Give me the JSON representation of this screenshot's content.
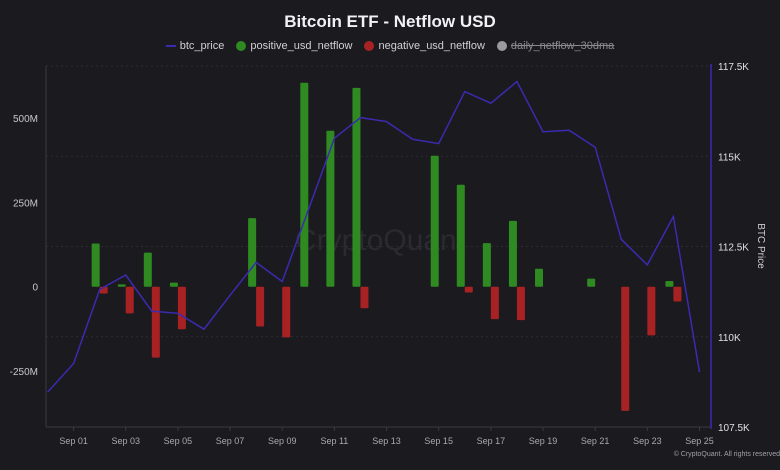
{
  "chart_data": {
    "type": "bar+line",
    "title": "Bitcoin ETF - Netflow USD",
    "legend": [
      {
        "name": "btc_price",
        "color": "#3a2bb0",
        "symbol": "line",
        "enabled": true
      },
      {
        "name": "positive_usd_netflow",
        "color": "#2f8a22",
        "symbol": "dot",
        "enabled": true
      },
      {
        "name": "negative_usd_netflow",
        "color": "#a82224",
        "symbol": "dot",
        "enabled": true
      },
      {
        "name": "daily_netflow_30dma",
        "color": "#9a9aa0",
        "symbol": "dot",
        "enabled": false
      }
    ],
    "legend_position": "top",
    "x": [
      "Aug 31",
      "Sep 01",
      "Sep 02",
      "Sep 03",
      "Sep 04",
      "Sep 05",
      "Sep 06",
      "Sep 07",
      "Sep 08",
      "Sep 09",
      "Sep 10",
      "Sep 11",
      "Sep 12",
      "Sep 13",
      "Sep 14",
      "Sep 15",
      "Sep 16",
      "Sep 17",
      "Sep 18",
      "Sep 19",
      "Sep 20",
      "Sep 21",
      "Sep 22",
      "Sep 23",
      "Sep 24",
      "Sep 25"
    ],
    "x_tick_labels": [
      "Sep 01",
      "Sep 03",
      "Sep 05",
      "Sep 07",
      "Sep 09",
      "Sep 11",
      "Sep 13",
      "Sep 15",
      "Sep 17",
      "Sep 19",
      "Sep 21",
      "Sep 23",
      "Sep 25"
    ],
    "series": [
      {
        "name": "btc_price",
        "axis": "right",
        "unit": "USD",
        "values": [
          108460,
          109260,
          111310,
          111710,
          110710,
          110650,
          110210,
          111150,
          112060,
          111530,
          113510,
          115500,
          116070,
          115960,
          115470,
          115350,
          116790,
          116470,
          117070,
          115680,
          115720,
          115250,
          112700,
          111990,
          113330,
          109020
        ]
      },
      {
        "name": "positive_usd_netflow",
        "axis": "left",
        "unit": "USD (M)",
        "values": [
          0,
          0,
          128,
          7,
          101,
          12,
          0,
          0,
          203,
          0,
          604,
          462,
          589,
          0,
          0,
          388,
          302,
          129,
          195,
          53,
          0,
          24,
          0,
          0,
          17,
          0
        ]
      },
      {
        "name": "negative_usd_netflow",
        "axis": "left",
        "unit": "USD (M)",
        "values": [
          0,
          0,
          -20,
          -79,
          -210,
          -126,
          0,
          0,
          -118,
          -150,
          0,
          0,
          -64,
          0,
          0,
          0,
          -17,
          -96,
          -99,
          0,
          0,
          0,
          -368,
          -144,
          -44,
          0
        ]
      }
    ],
    "left_axis": {
      "ticks": [
        "500M",
        "250M",
        "0",
        "-250M"
      ],
      "tick_values": [
        500,
        250,
        0,
        -250
      ],
      "range": [
        -420,
        650
      ]
    },
    "right_axis": {
      "label": "BTC Price",
      "ticks": [
        "117.5K",
        "115K",
        "112.5K",
        "110K",
        "107.5K"
      ],
      "tick_values": [
        117500,
        115000,
        112500,
        110000,
        107500
      ],
      "range": [
        107500,
        117500
      ]
    },
    "grid": true,
    "watermark": "CryptoQuant",
    "copyright": "© CryptoQuant. All rights reserved"
  }
}
